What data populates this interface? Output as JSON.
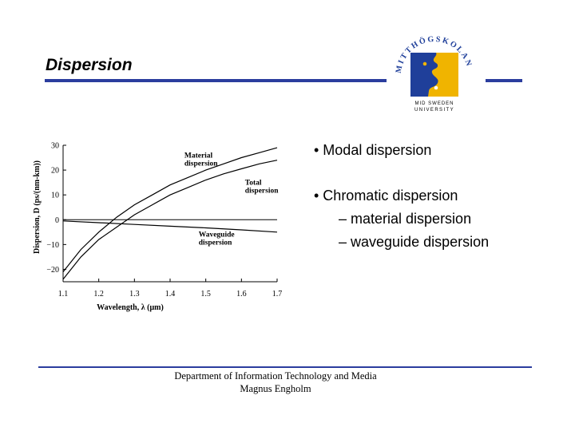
{
  "slide": {
    "title": "Dispersion"
  },
  "logo": {
    "arc_text": "MITTHÖGSKOLAN",
    "caption_line1": "MID SWEDEN",
    "caption_line2": "UNIVERSITY",
    "colors": {
      "panel": "#1f3f9a",
      "face": "#f0b400"
    }
  },
  "bullets": {
    "item1": "• Modal dispersion",
    "item2": "• Chromatic dispersion",
    "sub1": "– material dispersion",
    "sub2": "– waveguide dispersion"
  },
  "footer": {
    "line1": "Department of Information Technology and Media",
    "line2": "Magnus Engholm"
  },
  "chart_data": {
    "type": "line",
    "xlabel": "Wavelength, λ (μm)",
    "ylabel": "Dispersion, D (ps/(nm-km))",
    "xlim": [
      1.1,
      1.7
    ],
    "ylim": [
      -25,
      30
    ],
    "x_ticks": [
      "1.1",
      "1.2",
      "1.3",
      "1.4",
      "1.5",
      "1.6",
      "1.7"
    ],
    "y_ticks": [
      "30",
      "20",
      "10",
      "0",
      "−10",
      "−20"
    ],
    "series": [
      {
        "name": "Material dispersion",
        "label_lines": [
          "Material",
          "dispersion"
        ],
        "x": [
          1.1,
          1.15,
          1.2,
          1.25,
          1.3,
          1.35,
          1.4,
          1.45,
          1.5,
          1.55,
          1.6,
          1.65,
          1.7
        ],
        "y": [
          -21,
          -12,
          -5,
          1,
          6,
          10,
          14,
          17,
          20,
          22.5,
          25,
          27,
          29
        ]
      },
      {
        "name": "Total dispersion",
        "label_lines": [
          "Total",
          "dispersion"
        ],
        "x": [
          1.1,
          1.15,
          1.2,
          1.25,
          1.3,
          1.35,
          1.4,
          1.45,
          1.5,
          1.55,
          1.6,
          1.65,
          1.7
        ],
        "y": [
          -24,
          -15,
          -8,
          -3,
          2,
          6,
          10,
          13,
          16,
          18.5,
          20.5,
          22.5,
          24
        ]
      },
      {
        "name": "Waveguide dispersion",
        "label_lines": [
          "Waveguide",
          "dispersion"
        ],
        "x": [
          1.1,
          1.2,
          1.3,
          1.4,
          1.5,
          1.6,
          1.7
        ],
        "y": [
          -0.5,
          -1.2,
          -1.9,
          -2.6,
          -3.3,
          -4.1,
          -5
        ]
      }
    ],
    "reference_line": {
      "y": 0
    }
  }
}
